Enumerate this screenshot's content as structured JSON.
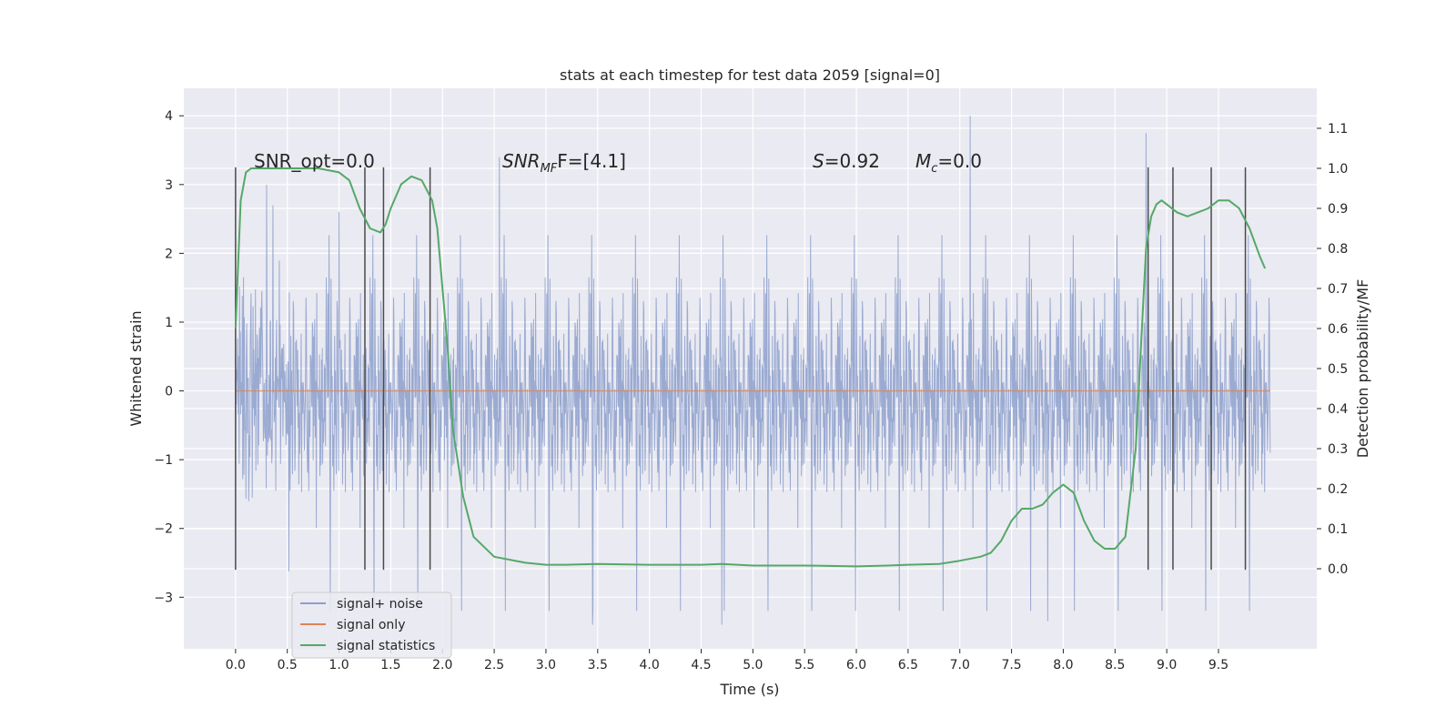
{
  "chart_data": {
    "type": "line",
    "title": "stats at each timestep for test data 2059 [signal=0]",
    "xlabel": "Time (s)",
    "ylabel": "Whitened strain",
    "y2label": "Detection probability/MF",
    "xlim": [
      -0.5,
      10.45
    ],
    "ylim": [
      -3.75,
      4.4
    ],
    "y2lim": [
      -0.2,
      1.2
    ],
    "x_ticks": [
      0.0,
      0.5,
      1.0,
      1.5,
      2.0,
      2.5,
      3.0,
      3.5,
      4.0,
      4.5,
      5.0,
      5.5,
      6.0,
      6.5,
      7.0,
      7.5,
      8.0,
      8.5,
      9.0,
      9.5
    ],
    "x_tick_labels": [
      "0.0",
      "0.5",
      "1.0",
      "1.5",
      "2.0",
      "2.5",
      "3.0",
      "3.5",
      "4.0",
      "4.5",
      "5.0",
      "5.5",
      "6.0",
      "6.5",
      "7.0",
      "7.5",
      "8.0",
      "8.5",
      "9.0",
      "9.5"
    ],
    "y_ticks": [
      -3,
      -2,
      -1,
      0,
      1,
      2,
      3,
      4
    ],
    "y_tick_labels": [
      "−3",
      "−2",
      "−1",
      "0",
      "1",
      "2",
      "3",
      "4"
    ],
    "y2_ticks": [
      0.0,
      0.1,
      0.2,
      0.3,
      0.4,
      0.5,
      0.6,
      0.7,
      0.8,
      0.9,
      1.0,
      1.1
    ],
    "y2_tick_labels": [
      "0.0",
      "0.1",
      "0.2",
      "0.3",
      "0.4",
      "0.5",
      "0.6",
      "0.7",
      "0.8",
      "0.9",
      "1.0",
      "1.1"
    ],
    "grid": true,
    "legend_position": "bottom-left",
    "annotations": {
      "snr_opt": "SNR_opt=0.0",
      "snr_mf_prefix": "SNR",
      "snr_mf_sub": "MF",
      "snr_mf_value": "F=[4.1]",
      "s_label": "S",
      "s_value": "=0.92",
      "mc_label": "M",
      "mc_sub": "c",
      "mc_value": "=0.0"
    },
    "series": [
      {
        "name": "signal+ noise",
        "color": "#8c9fcb",
        "style": "noise",
        "x_range": [
          0.0,
          10.0
        ],
        "amplitude_sigma": 1.0,
        "peaks": [
          [
            1.0,
            2.6
          ],
          [
            2.55,
            3.4
          ],
          [
            7.1,
            4.0
          ],
          [
            8.8,
            3.75
          ],
          [
            4.7,
            -3.4
          ],
          [
            3.45,
            -3.4
          ],
          [
            7.85,
            -3.35
          ],
          [
            0.3,
            3.0
          ]
        ]
      },
      {
        "name": "signal only",
        "color": "#dd8452",
        "x": [
          0.0,
          10.0
        ],
        "y": [
          0.0,
          0.0
        ]
      },
      {
        "name": "signal statistics",
        "color": "#55a868",
        "axis": "right",
        "x": [
          0.0,
          0.05,
          0.1,
          0.15,
          0.2,
          0.3,
          0.5,
          0.8,
          1.0,
          1.1,
          1.2,
          1.3,
          1.4,
          1.45,
          1.5,
          1.6,
          1.7,
          1.8,
          1.9,
          1.95,
          2.0,
          2.05,
          2.1,
          2.2,
          2.3,
          2.5,
          2.8,
          3.0,
          3.2,
          3.5,
          4.0,
          4.5,
          4.7,
          5.0,
          5.5,
          6.0,
          6.3,
          6.5,
          6.8,
          7.0,
          7.2,
          7.3,
          7.4,
          7.5,
          7.6,
          7.7,
          7.8,
          7.9,
          8.0,
          8.1,
          8.2,
          8.3,
          8.4,
          8.5,
          8.6,
          8.7,
          8.75,
          8.8,
          8.85,
          8.9,
          8.95,
          9.0,
          9.1,
          9.2,
          9.3,
          9.4,
          9.5,
          9.6,
          9.7,
          9.8,
          9.9,
          9.95
        ],
        "y": [
          0.6,
          0.92,
          0.99,
          1.0,
          1.0,
          1.0,
          1.0,
          1.0,
          0.99,
          0.97,
          0.9,
          0.85,
          0.84,
          0.86,
          0.9,
          0.96,
          0.98,
          0.97,
          0.92,
          0.85,
          0.7,
          0.55,
          0.35,
          0.18,
          0.08,
          0.03,
          0.015,
          0.01,
          0.01,
          0.012,
          0.01,
          0.01,
          0.012,
          0.008,
          0.008,
          0.006,
          0.008,
          0.01,
          0.012,
          0.02,
          0.03,
          0.04,
          0.07,
          0.12,
          0.15,
          0.15,
          0.16,
          0.19,
          0.21,
          0.19,
          0.12,
          0.07,
          0.05,
          0.05,
          0.08,
          0.3,
          0.55,
          0.8,
          0.88,
          0.91,
          0.92,
          0.91,
          0.89,
          0.88,
          0.89,
          0.9,
          0.92,
          0.92,
          0.9,
          0.85,
          0.78,
          0.75
        ]
      }
    ],
    "vertical_markers": [
      {
        "x": 0.0,
        "y_top": 3.25,
        "y_bottom": -2.6
      },
      {
        "x": 1.25,
        "y_top": 3.25,
        "y_bottom": -2.6
      },
      {
        "x": 1.43,
        "y_top": 3.25,
        "y_bottom": -2.6
      },
      {
        "x": 1.88,
        "y_top": 3.25,
        "y_bottom": -2.6
      },
      {
        "x": 8.82,
        "y_top": 3.25,
        "y_bottom": -2.6
      },
      {
        "x": 9.06,
        "y_top": 3.25,
        "y_bottom": -2.6
      },
      {
        "x": 9.43,
        "y_top": 3.25,
        "y_bottom": -2.6
      },
      {
        "x": 9.76,
        "y_top": 3.25,
        "y_bottom": -2.6
      }
    ]
  }
}
